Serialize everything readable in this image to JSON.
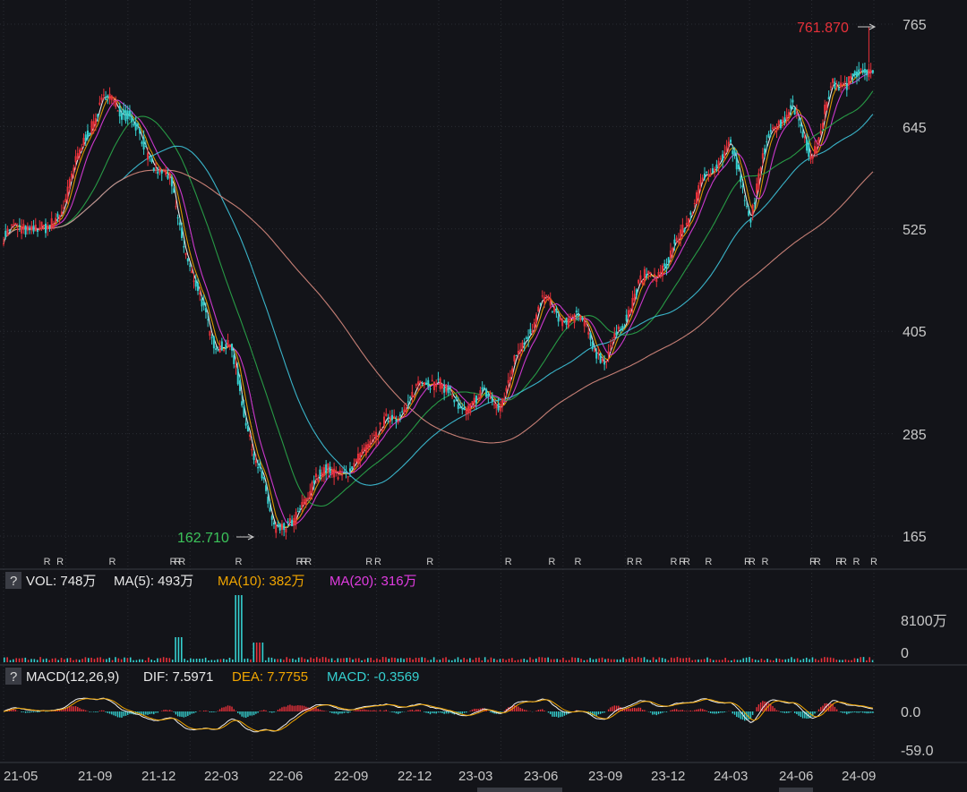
{
  "colors": {
    "background": "#131419",
    "grid": "#2a2c33",
    "axis_text": "#c8c8c8",
    "up": "#e8313a",
    "down": "#35d0d0",
    "ma5": "#ffffff",
    "ma10": "#f0a500",
    "ma20": "#e03ce0",
    "ma60": "#2aa84a",
    "ma120": "#3ec4dc",
    "ma250": "#d98b80",
    "max_label": "#e8313a",
    "min_label": "#3cc35a",
    "dif": "#f0f0f0",
    "dea": "#f0a500"
  },
  "price_panel": {
    "y_ticks": [
      "765",
      "645",
      "525",
      "405",
      "285",
      "165"
    ],
    "max_label": "761.870",
    "min_label": "162.710",
    "r_marker": "R"
  },
  "volume_panel": {
    "help": "?",
    "vol_label": "VOL: 748万",
    "ma5_label": "MA(5): 493万",
    "ma10_label": "MA(10): 382万",
    "ma20_label": "MA(20): 316万",
    "y_ticks": [
      "8100万",
      "0"
    ]
  },
  "macd_panel": {
    "help": "?",
    "name_label": "MACD(12,26,9)",
    "dif_label": "DIF: 7.5971",
    "dea_label": "DEA: 7.7755",
    "macd_label": "MACD: -0.3569",
    "y_ticks": [
      "0.0",
      "-59.0"
    ]
  },
  "x_axis": {
    "labels": [
      "21-05",
      "21-09",
      "21-12",
      "22-03",
      "22-06",
      "22-09",
      "22-12",
      "23-03",
      "23-06",
      "23-09",
      "23-12",
      "24-03",
      "24-06",
      "24-09"
    ]
  },
  "chart_data": {
    "type": "candlestick",
    "price_axis": {
      "ylim": [
        165,
        765
      ],
      "ticks": [
        765,
        645,
        525,
        405,
        285,
        165
      ]
    },
    "price_path": [
      [
        "21-04",
        515
      ],
      [
        "21-05",
        530
      ],
      [
        "21-06",
        520
      ],
      [
        "21-07",
        560
      ],
      [
        "21-08",
        640
      ],
      [
        "21-09",
        680
      ],
      [
        "21-10",
        660
      ],
      [
        "21-11",
        610
      ],
      [
        "21-12",
        580
      ],
      [
        "22-01",
        480
      ],
      [
        "22-02",
        400
      ],
      [
        "22-03",
        380
      ],
      [
        "22-04",
        270
      ],
      [
        "22-05",
        180
      ],
      [
        "22-06",
        175
      ],
      [
        "22-07",
        235
      ],
      [
        "22-08",
        240
      ],
      [
        "22-09",
        245
      ],
      [
        "22-10",
        290
      ],
      [
        "22-11",
        305
      ],
      [
        "22-12",
        340
      ],
      [
        "23-01",
        350
      ],
      [
        "23-02",
        310
      ],
      [
        "23-03",
        330
      ],
      [
        "23-04",
        320
      ],
      [
        "23-05",
        390
      ],
      [
        "23-06",
        440
      ],
      [
        "23-07",
        420
      ],
      [
        "23-08",
        415
      ],
      [
        "23-09",
        365
      ],
      [
        "23-10",
        425
      ],
      [
        "23-11",
        470
      ],
      [
        "23-12",
        480
      ],
      [
        "24-01",
        540
      ],
      [
        "24-02",
        590
      ],
      [
        "24-03",
        625
      ],
      [
        "24-04",
        540
      ],
      [
        "24-05",
        640
      ],
      [
        "24-06",
        670
      ],
      [
        "24-07",
        610
      ],
      [
        "24-08",
        690
      ],
      [
        "24-09",
        705
      ],
      [
        "24-10",
        710
      ]
    ],
    "max_price": 761.87,
    "min_price": 162.71,
    "volume_axis": {
      "ticks": [
        "8100万",
        "0"
      ]
    },
    "macd_axis": {
      "ticks": [
        0.0,
        -59.0
      ]
    },
    "indicators": {
      "VOL": "748万",
      "MA5": "493万",
      "MA10": "382万",
      "MA20": "316万",
      "DIF": 7.5971,
      "DEA": 7.7755,
      "MACD": -0.3569
    }
  }
}
